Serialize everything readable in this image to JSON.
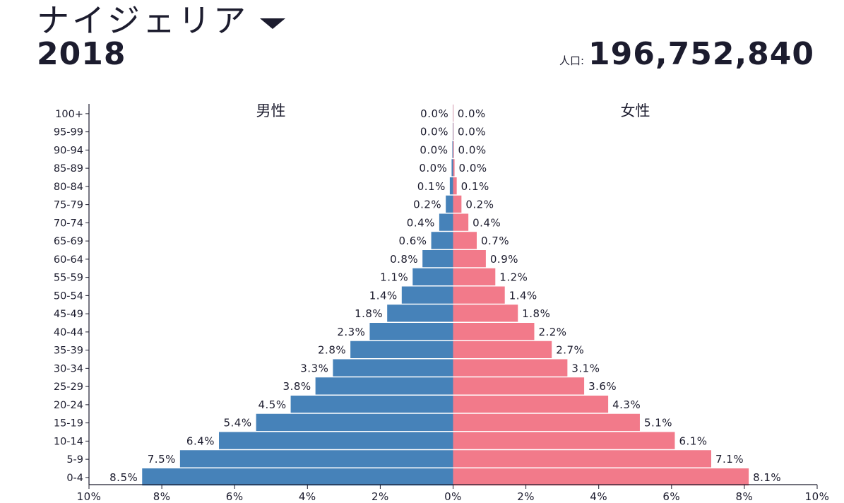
{
  "header": {
    "country": "ナイジェリア",
    "year": "2018",
    "population_label": "人口:",
    "population_value": "196,752,840"
  },
  "chart_data": {
    "type": "bar",
    "orientation": "horizontal-pyramid",
    "categories": [
      "100+",
      "95-99",
      "90-94",
      "85-89",
      "80-84",
      "75-79",
      "70-74",
      "65-69",
      "60-64",
      "55-59",
      "50-54",
      "45-49",
      "40-44",
      "35-39",
      "30-34",
      "25-29",
      "20-24",
      "15-19",
      "10-14",
      "5-9",
      "0-4"
    ],
    "series": [
      {
        "name": "男性",
        "color": "#4682b9",
        "values": [
          0.004,
          0.01,
          0.02,
          0.04,
          0.09,
          0.2,
          0.38,
          0.6,
          0.84,
          1.11,
          1.41,
          1.81,
          2.29,
          2.82,
          3.3,
          3.78,
          4.46,
          5.41,
          6.43,
          7.5,
          8.54
        ],
        "labels": [
          "0.0%",
          "0.0%",
          "0.0%",
          "0.0%",
          "0.1%",
          "0.2%",
          "0.4%",
          "0.6%",
          "0.8%",
          "1.1%",
          "1.4%",
          "1.8%",
          "2.3%",
          "2.8%",
          "3.3%",
          "3.8%",
          "4.5%",
          "5.4%",
          "6.4%",
          "7.5%",
          "8.5%"
        ]
      },
      {
        "name": "女性",
        "color": "#f27a8a",
        "values": [
          0.004,
          0.01,
          0.02,
          0.04,
          0.1,
          0.23,
          0.42,
          0.65,
          0.9,
          1.16,
          1.42,
          1.78,
          2.23,
          2.71,
          3.14,
          3.6,
          4.26,
          5.13,
          6.09,
          7.09,
          8.12
        ],
        "labels": [
          "0.0%",
          "0.0%",
          "0.0%",
          "0.0%",
          "0.1%",
          "0.2%",
          "0.4%",
          "0.7%",
          "0.9%",
          "1.2%",
          "1.4%",
          "1.8%",
          "2.2%",
          "2.7%",
          "3.1%",
          "3.6%",
          "4.3%",
          "5.1%",
          "6.1%",
          "7.1%",
          "8.1%"
        ]
      }
    ],
    "xlim": [
      -10,
      10
    ],
    "xticks": [
      "10%",
      "8%",
      "6%",
      "4%",
      "2%",
      "0%",
      "2%",
      "4%",
      "6%",
      "8%",
      "10%"
    ]
  }
}
